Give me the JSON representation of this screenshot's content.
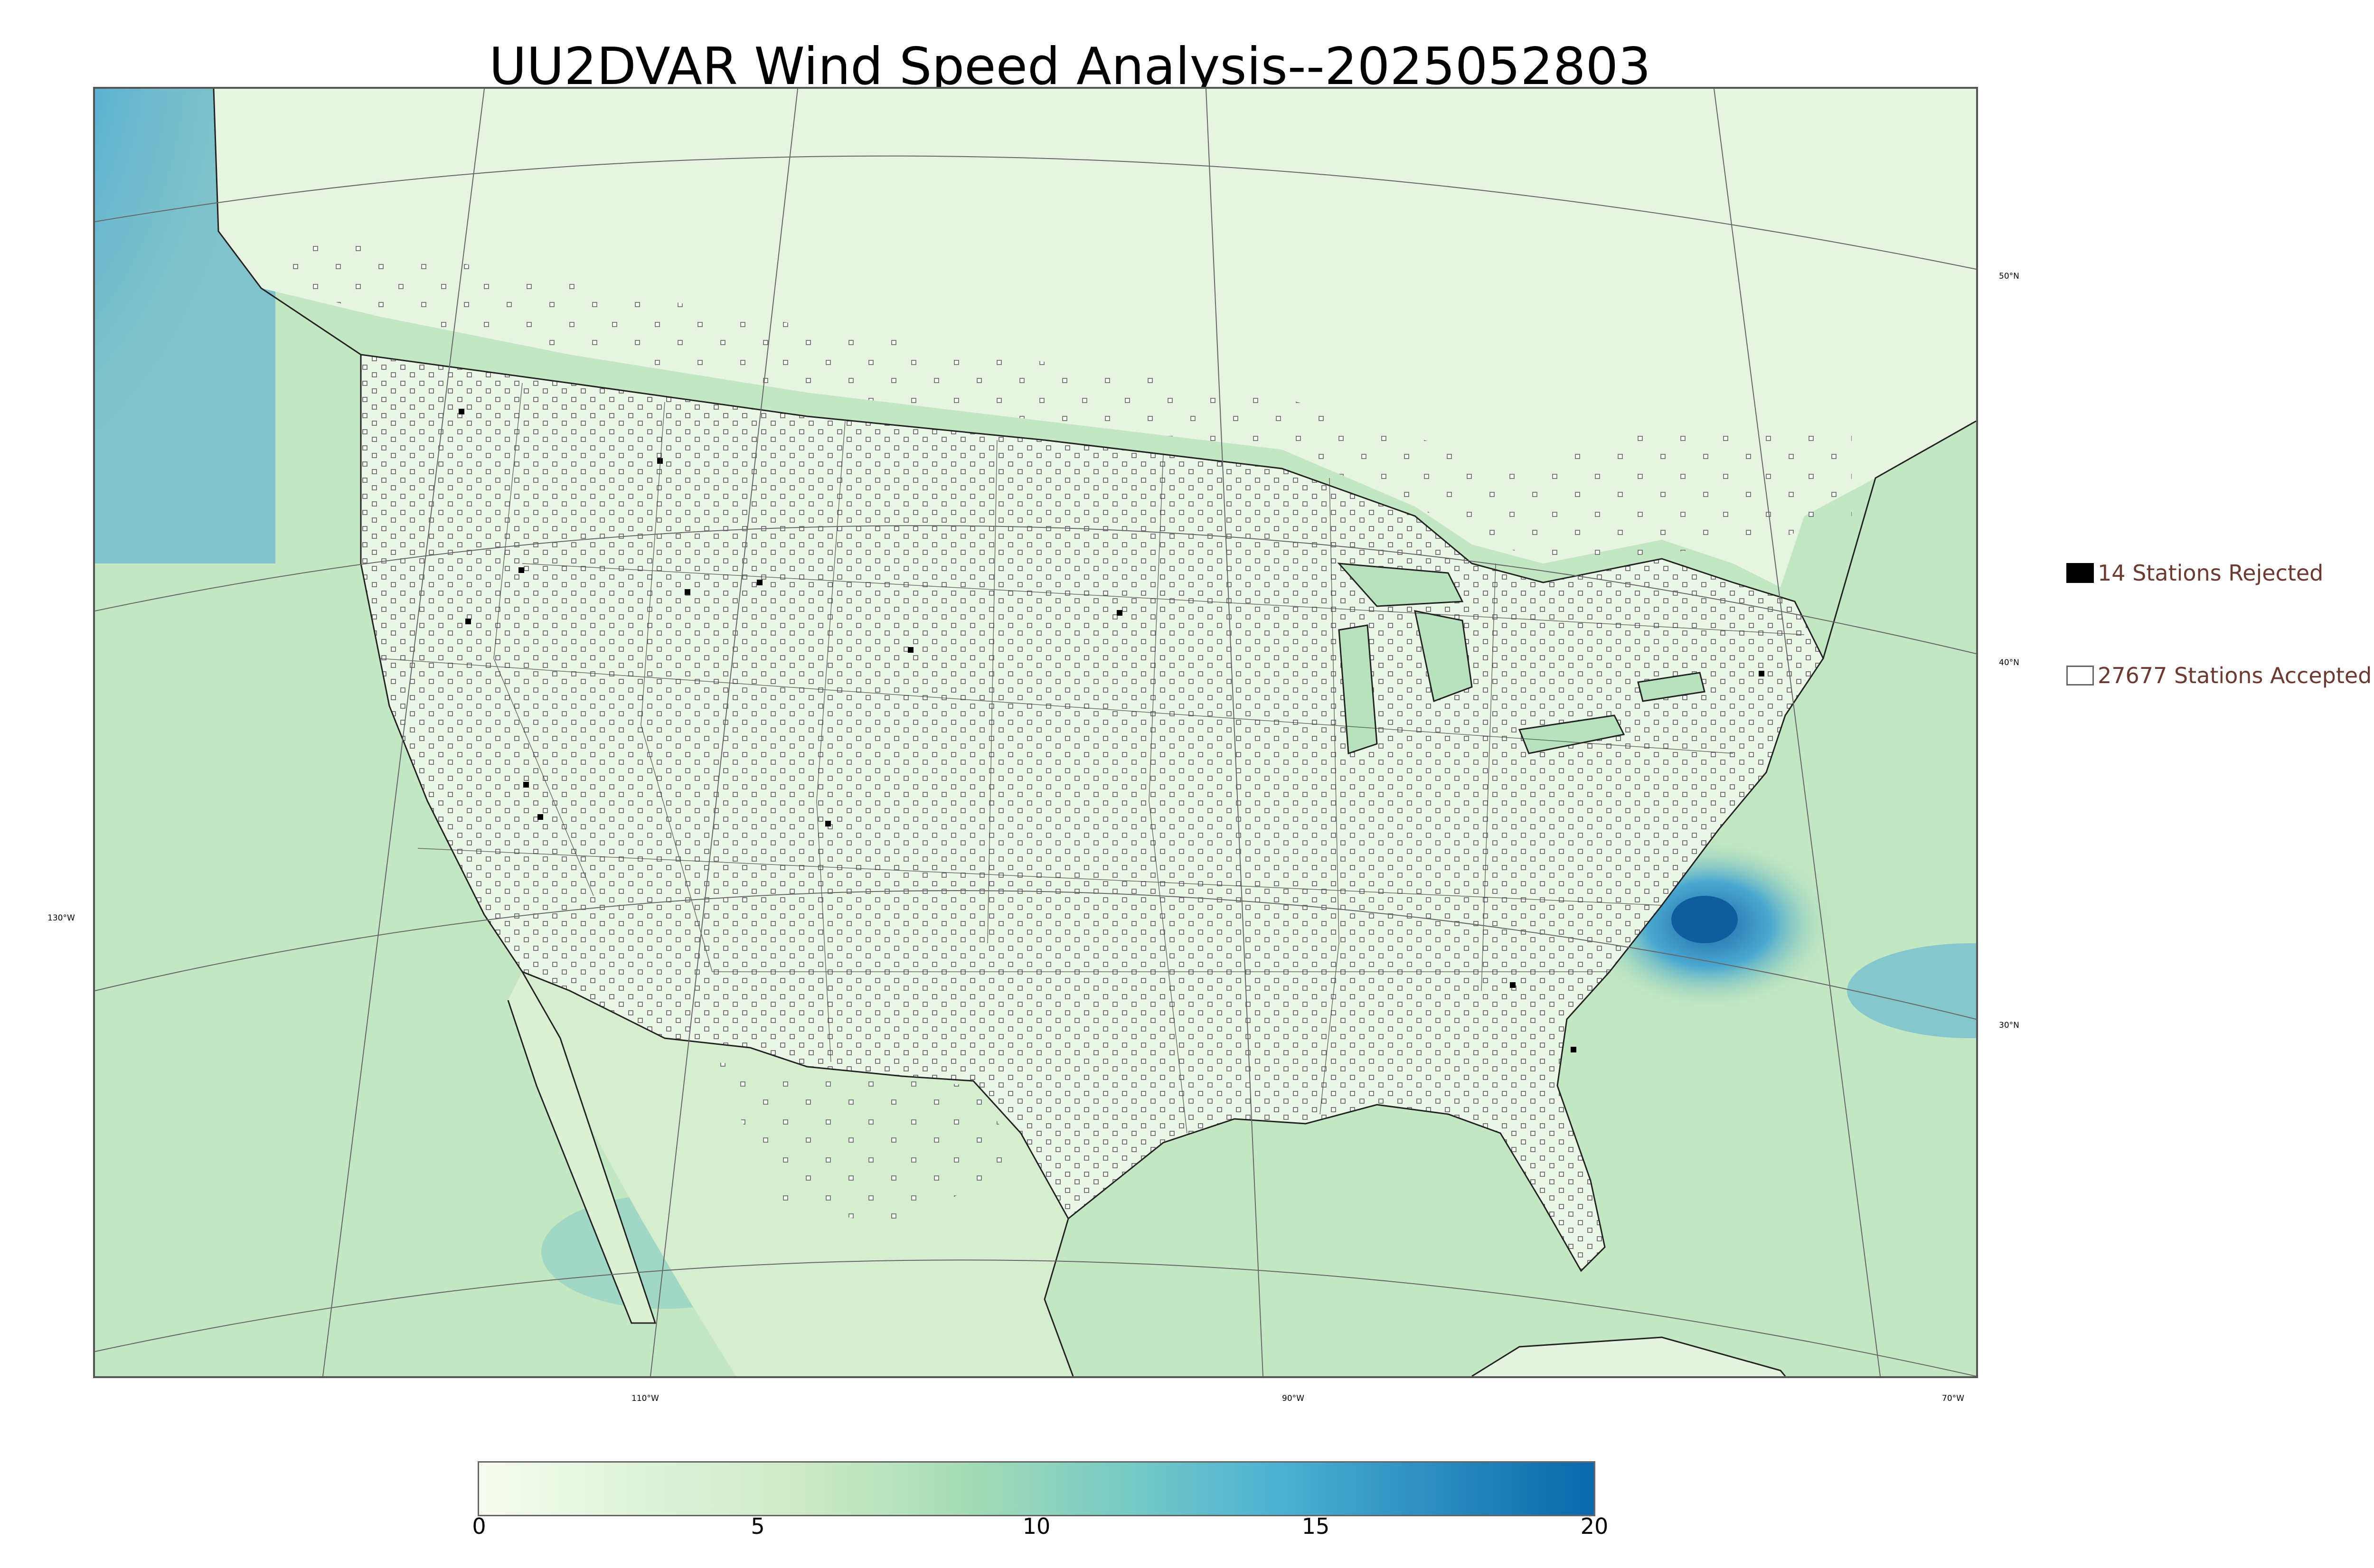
{
  "title": "UU2DVAR Wind Speed Analysis--2025052803",
  "lon_labels": [
    "130°W",
    "110°W",
    "90°W",
    "70°W"
  ],
  "lat_labels": [
    "50°N",
    "40°N",
    "30°N"
  ],
  "legend": {
    "rejected": "14 Stations Rejected",
    "accepted": "27677 Stations Accepted"
  },
  "colorbar": {
    "ticks": [
      "0",
      "5",
      "10",
      "15",
      "20"
    ],
    "min": 0,
    "max": 20,
    "colors": [
      "#f7fcf0",
      "#e0f3db",
      "#ccebc5",
      "#a8ddb5",
      "#7bccc4",
      "#4eb3d3",
      "#2b8cbe",
      "#0868ac"
    ]
  },
  "colors": {
    "land": "#e8f5e4",
    "ocean_light": "#c6e8c4",
    "ocean_mid": "#8fd0c6",
    "ocean_dark": "#3a93c8",
    "station_accepted": "#ffffff",
    "station_rejected": "#000000",
    "legend_text": "#6b3a32"
  }
}
